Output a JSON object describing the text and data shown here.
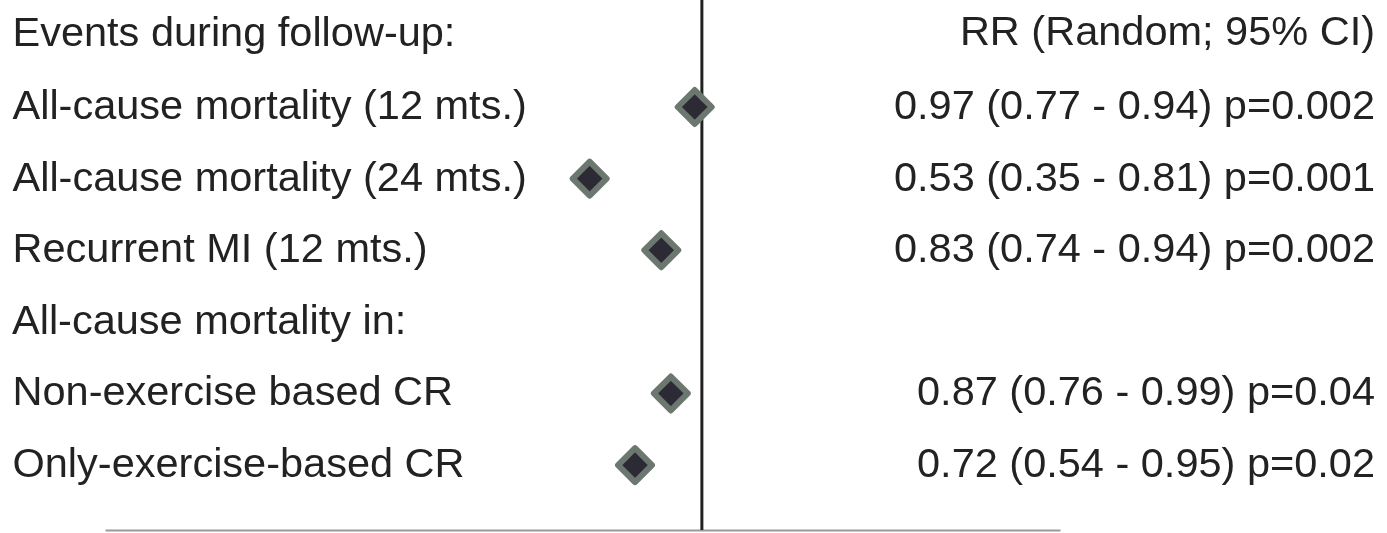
{
  "chart_data": {
    "type": "scatter",
    "orientation": "horizontal",
    "ylabel": "Events during follow-up:",
    "categories": [
      "All-cause mortality (12 mts.)",
      "All-cause mortality (24 mts.)",
      "Recurrent MI (12 mts.)",
      null,
      "Non-exercise based CR",
      "Only-exercise-based CR"
    ],
    "values": [
      0.97,
      0.53,
      0.83,
      null,
      0.87,
      0.72
    ],
    "value_labels": [
      "0.97 (0.77 - 0.94) p=0.002",
      "0.53 (0.35 - 0.81) p=0.001",
      "0.83 (0.74 - 0.94) p=0.002",
      null,
      "0.87 (0.76 - 0.99) p=0.04",
      "0.72 (0.54 - 0.95) p=0.02"
    ],
    "annotations": [
      "All-cause mortality in:",
      "RR (Random; 95% CI)"
    ],
    "color": "#2b2a35",
    "marker": "diamond",
    "xlim": [
      -1.5,
      2.5
    ],
    "ref_lines": [
      {
        "axis": "x",
        "value": 1,
        "color": "#222222"
      }
    ],
    "tick_labels": "y"
  }
}
